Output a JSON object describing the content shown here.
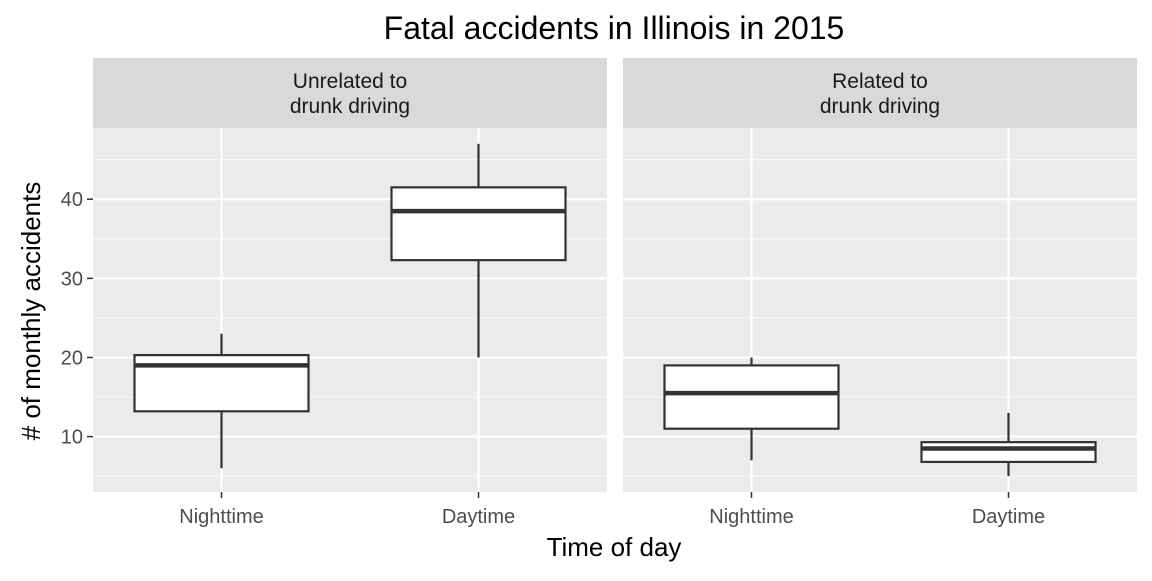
{
  "chart_data": {
    "type": "boxplot",
    "title": "Fatal accidents in Illinois in 2015",
    "xlabel": "Time of day",
    "ylabel": "# of monthly accidents",
    "categories": [
      "Nighttime",
      "Daytime"
    ],
    "yticks": [
      10,
      20,
      30,
      40
    ],
    "ylim": [
      3,
      49
    ],
    "grid": true,
    "facets": [
      {
        "strip": [
          "Unrelated to",
          "drunk driving"
        ],
        "boxes": [
          {
            "category": "Nighttime",
            "min": 6,
            "q1": 13.2,
            "median": 19,
            "q3": 20.3,
            "max": 23
          },
          {
            "category": "Daytime",
            "min": 20,
            "q1": 32.3,
            "median": 38.5,
            "q3": 41.5,
            "max": 47
          }
        ]
      },
      {
        "strip": [
          "Related to",
          "drunk driving"
        ],
        "boxes": [
          {
            "category": "Nighttime",
            "min": 7,
            "q1": 11,
            "median": 15.5,
            "q3": 19,
            "max": 20
          },
          {
            "category": "Daytime",
            "min": 5,
            "q1": 6.8,
            "median": 8.5,
            "q3": 9.3,
            "max": 13
          }
        ]
      }
    ]
  }
}
